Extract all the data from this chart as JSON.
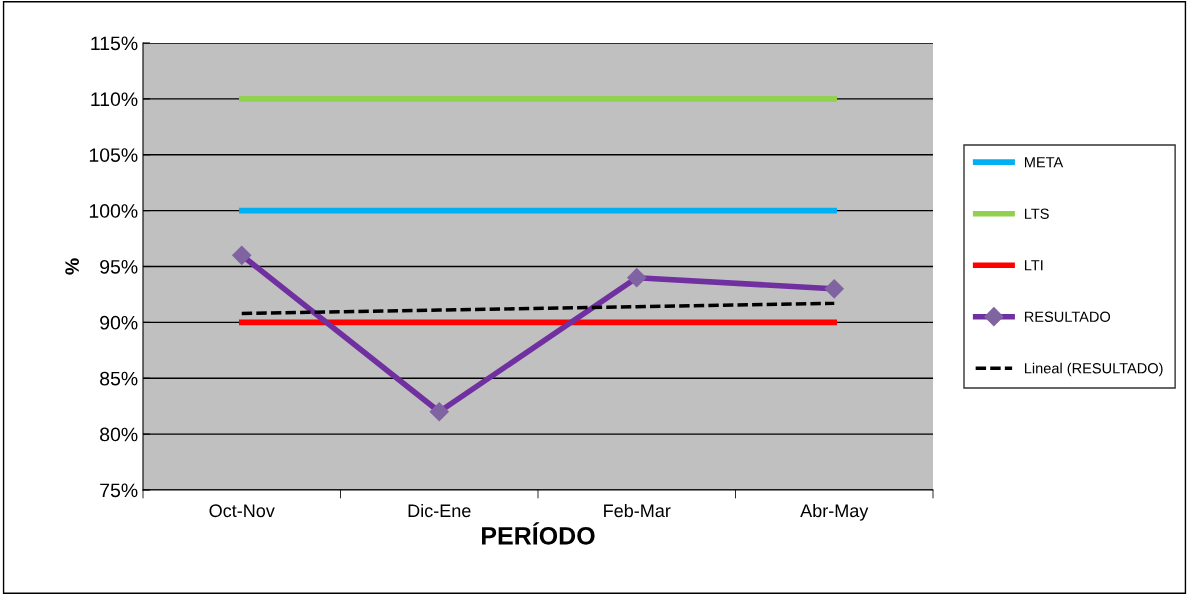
{
  "chart_data": {
    "type": "line",
    "xlabel": "PERÍODO",
    "ylabel": "%",
    "categories": [
      "Oct-Nov",
      "Dic-Ene",
      "Feb-Mar",
      "Abr-May"
    ],
    "series": [
      {
        "name": "META",
        "color": "#00b0f0",
        "values": [
          100,
          100,
          100,
          100
        ]
      },
      {
        "name": "LTS",
        "color": "#92d050",
        "values": [
          110,
          110,
          110,
          110
        ]
      },
      {
        "name": "LTI",
        "color": "#ff0000",
        "values": [
          90,
          90,
          90,
          90
        ]
      },
      {
        "name": "RESULTADO",
        "color": "#7030a0",
        "values": [
          96,
          82,
          94,
          93
        ],
        "marker": "diamond"
      },
      {
        "name": "Lineal (RESULTADO)",
        "color": "#000000",
        "values": [
          90.8,
          91.1,
          91.4,
          91.7
        ],
        "line_style": "dashed"
      }
    ],
    "ylim": [
      75,
      115
    ],
    "yticks": [
      {
        "value": 75,
        "label": "75%"
      },
      {
        "value": 80,
        "label": "80%"
      },
      {
        "value": 85,
        "label": "85%"
      },
      {
        "value": 90,
        "label": "90%"
      },
      {
        "value": 95,
        "label": "95%"
      },
      {
        "value": 100,
        "label": "100%"
      },
      {
        "value": 105,
        "label": "105%"
      },
      {
        "value": 110,
        "label": "110%"
      },
      {
        "value": 115,
        "label": "115%"
      }
    ],
    "grid": "y",
    "legend": "right"
  }
}
